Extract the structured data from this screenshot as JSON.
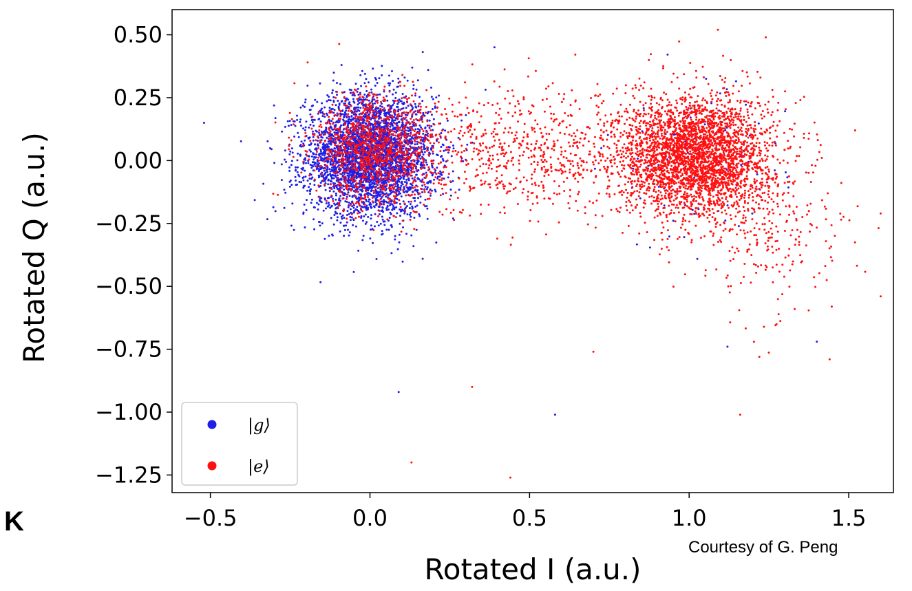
{
  "panel_letter": "K",
  "credit": "Courtesy of G. Peng",
  "chart_data": {
    "type": "scatter",
    "title": "",
    "xlabel": "Rotated I (a.u.)",
    "ylabel": "Rotated Q (a.u.)",
    "xlim": [
      -0.62,
      1.64
    ],
    "ylim": [
      -1.32,
      0.6
    ],
    "xticks": [
      -0.5,
      0.0,
      0.5,
      1.0,
      1.5
    ],
    "xtick_labels": [
      "−0.5",
      "0.0",
      "0.5",
      "1.0",
      "1.5"
    ],
    "yticks": [
      0.5,
      0.25,
      0.0,
      -0.25,
      -0.5,
      -0.75,
      -1.0,
      -1.25
    ],
    "ytick_labels": [
      "0.50",
      "0.25",
      "0.00",
      "−0.25",
      "−0.50",
      "−0.75",
      "−1.00",
      "−1.25"
    ],
    "grid": false,
    "legend": {
      "placement": "lower-left"
    },
    "series": [
      {
        "name": "|g⟩",
        "color": "#1f1fe6",
        "distribution": "gaussian",
        "clusters": [
          {
            "center": [
              0.0,
              0.02
            ],
            "spread": [
              0.1,
              0.12
            ],
            "count": 3800
          },
          {
            "center": [
              1.02,
              -0.02
            ],
            "spread": [
              0.14,
              0.16
            ],
            "count": 90
          }
        ],
        "outliers": [
          {
            "x": -0.52,
            "y": 0.15
          },
          {
            "x": 0.09,
            "y": -0.92
          },
          {
            "x": 0.58,
            "y": -1.01
          },
          {
            "x": 0.39,
            "y": 0.45
          },
          {
            "x": 1.4,
            "y": -0.72
          },
          {
            "x": 1.12,
            "y": -0.74
          }
        ]
      },
      {
        "name": "|e⟩",
        "color": "#ff1010",
        "distribution": "gaussian",
        "clusters": [
          {
            "center": [
              1.02,
              0.02
            ],
            "spread": [
              0.12,
              0.12
            ],
            "count": 3300
          },
          {
            "center": [
              0.02,
              0.04
            ],
            "spread": [
              0.1,
              0.11
            ],
            "count": 1200
          },
          {
            "center": [
              0.5,
              0.03
            ],
            "spread": [
              0.18,
              0.12
            ],
            "count": 650
          },
          {
            "center": [
              1.25,
              -0.3
            ],
            "spread": [
              0.12,
              0.15
            ],
            "count": 220
          }
        ],
        "outliers": [
          {
            "x": 0.32,
            "y": -0.9
          },
          {
            "x": 0.13,
            "y": -1.2
          },
          {
            "x": 0.44,
            "y": -1.26
          },
          {
            "x": 0.7,
            "y": -0.76
          },
          {
            "x": 1.16,
            "y": -1.01
          },
          {
            "x": 1.22,
            "y": -0.78
          },
          {
            "x": 1.6,
            "y": -0.21
          },
          {
            "x": 1.6,
            "y": -0.54
          },
          {
            "x": 1.44,
            "y": -0.79
          },
          {
            "x": 1.52,
            "y": 0.12
          },
          {
            "x": 1.09,
            "y": 0.52
          },
          {
            "x": 1.24,
            "y": 0.49
          }
        ]
      }
    ]
  }
}
